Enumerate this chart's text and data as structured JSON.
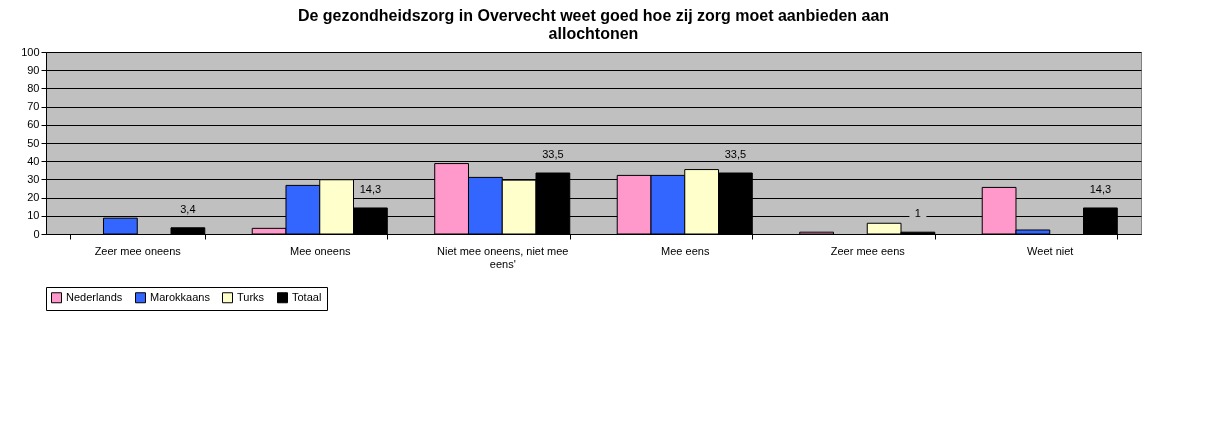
{
  "chart_data": {
    "type": "bar",
    "title": "De gezondheidszorg in Overvecht weet goed hoe zij zorg moet aanbieden aan allochtonen",
    "categories": [
      "Zeer mee oneens",
      "Mee oneens",
      "Niet mee oneens, niet mee eens'",
      "Mee eens",
      "Zeer mee eens",
      "Weet niet"
    ],
    "series": [
      {
        "name": "Nederlands",
        "color": "#ff99cc",
        "values": [
          0,
          3.1,
          38.7,
          32.2,
          1.0,
          25.6
        ]
      },
      {
        "name": "Marokkaans",
        "color": "#3366ff",
        "values": [
          8.7,
          26.7,
          31.1,
          32.2,
          0,
          2.2
        ]
      },
      {
        "name": "Turks",
        "color": "#ffffcc",
        "values": [
          0,
          29.8,
          29.6,
          35.4,
          5.9,
          0
        ]
      },
      {
        "name": "Totaal",
        "color": "#000000",
        "values": [
          3.4,
          14.3,
          33.5,
          33.5,
          1,
          14.3
        ],
        "value_labels": [
          "3,4",
          "14,3",
          "33,5",
          "33,5",
          "1",
          "14,3"
        ]
      }
    ],
    "ylim": [
      0,
      100
    ],
    "yticks": [
      0,
      10,
      20,
      30,
      40,
      50,
      60,
      70,
      80,
      90,
      100
    ],
    "grid": "y",
    "legend": "bottom"
  }
}
